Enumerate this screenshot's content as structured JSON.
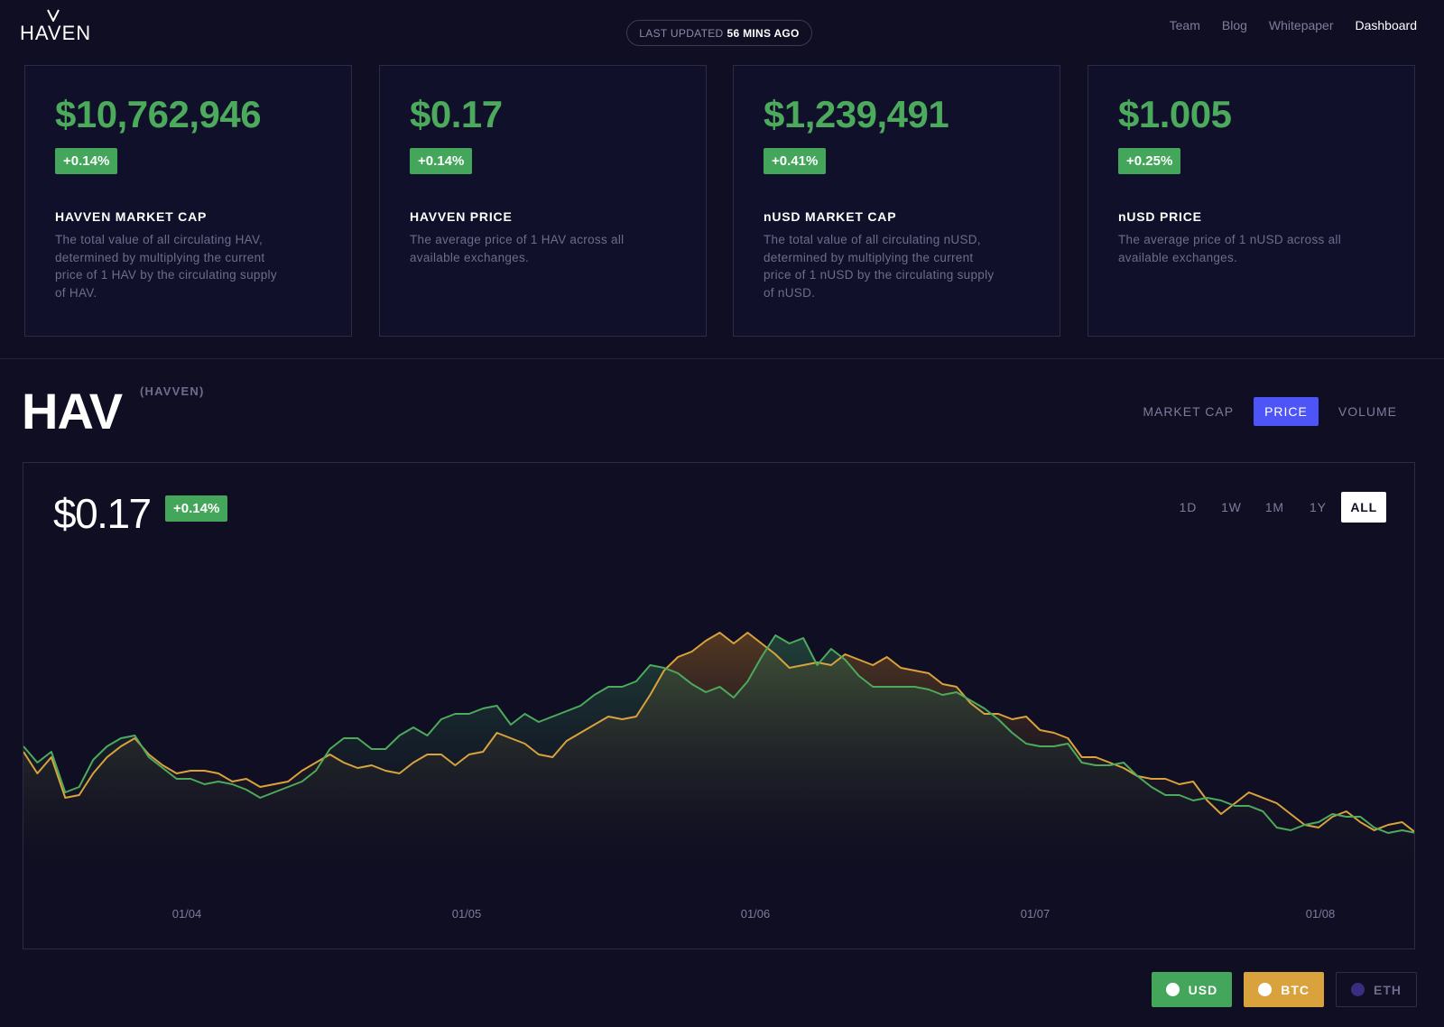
{
  "header": {
    "logo_text": "HAVEN",
    "last_updated_label": "LAST UPDATED",
    "last_updated_value": "56 MINS AGO",
    "nav": [
      {
        "label": "Team",
        "active": false
      },
      {
        "label": "Blog",
        "active": false
      },
      {
        "label": "Whitepaper",
        "active": false
      },
      {
        "label": "Dashboard",
        "active": true
      }
    ]
  },
  "cards": [
    {
      "value": "$10,762,946",
      "change": "+0.14%",
      "title": "HAVVEN MARKET CAP",
      "desc": "The total value of all circulating HAV, determined by multiplying the current price of 1 HAV by the circulating supply of HAV."
    },
    {
      "value": "$0.17",
      "change": "+0.14%",
      "title": "HAVVEN PRICE",
      "desc": "The average price of 1 HAV across all available exchanges."
    },
    {
      "value": "$1,239,491",
      "change": "+0.41%",
      "title": "nUSD MARKET CAP",
      "desc": "The total value of all circulating nUSD, determined by multiplying the current price of 1 nUSD by the circulating supply of nUSD."
    },
    {
      "value": "$1.005",
      "change": "+0.25%",
      "title": "nUSD PRICE",
      "desc": "The average price of 1 nUSD across all available exchanges."
    }
  ],
  "section": {
    "symbol": "HAV",
    "subtitle": "(HAVVEN)",
    "metric_tabs": [
      {
        "label": "MARKET CAP",
        "active": false
      },
      {
        "label": "PRICE",
        "active": true
      },
      {
        "label": "VOLUME",
        "active": false
      }
    ],
    "price": "$0.17",
    "change": "+0.14%",
    "range_tabs": [
      {
        "label": "1D",
        "active": false
      },
      {
        "label": "1W",
        "active": false
      },
      {
        "label": "1M",
        "active": false
      },
      {
        "label": "1Y",
        "active": false
      },
      {
        "label": "ALL",
        "active": true
      }
    ],
    "currencies": [
      {
        "label": "USD",
        "active": true
      },
      {
        "label": "BTC",
        "active": true
      },
      {
        "label": "ETH",
        "active": false
      }
    ]
  },
  "colors": {
    "background": "#0f0e22",
    "positive": "#44a65a",
    "usd_line": "#4caa5c",
    "btc_line": "#d9a23c",
    "eth_dot": "#3a2d80",
    "accent": "#4d55f6"
  },
  "chart_data": {
    "type": "area",
    "x_tick_labels": [
      "01/04",
      "01/05",
      "01/06",
      "01/07",
      "01/08"
    ],
    "xlim": [
      0,
      100
    ],
    "ylim": [
      0,
      100
    ],
    "y_axis_shown": false,
    "grid": false,
    "series": [
      {
        "name": "USD",
        "color": "#4caa5c",
        "x": [
          0,
          1,
          2,
          3,
          4,
          5,
          6,
          7,
          8,
          9,
          10,
          11,
          12,
          13,
          14,
          15,
          16,
          17,
          18,
          19,
          20,
          21,
          22,
          23,
          24,
          25,
          26,
          27,
          28,
          29,
          30,
          31,
          32,
          33,
          34,
          35,
          36,
          37,
          38,
          39,
          40,
          41,
          42,
          43,
          44,
          45,
          46,
          47,
          48,
          49,
          50,
          51,
          52,
          53,
          54,
          55,
          56,
          57,
          58,
          59,
          60,
          61,
          62,
          63,
          64,
          65,
          66,
          67,
          68,
          69,
          70,
          71,
          72,
          73,
          74,
          75,
          76,
          77,
          78,
          79,
          80,
          81,
          82,
          83,
          84,
          85,
          86,
          87,
          88,
          89,
          90,
          91,
          92,
          93,
          94,
          95,
          96,
          97,
          98,
          99,
          100
        ],
        "values": [
          52,
          46,
          50,
          35,
          37,
          47,
          52,
          55,
          56,
          48,
          44,
          40,
          40,
          38,
          39,
          38,
          36,
          33,
          35,
          37,
          39,
          43,
          51,
          55,
          55,
          51,
          51,
          56,
          59,
          56,
          62,
          64,
          64,
          66,
          67,
          60,
          64,
          61,
          63,
          65,
          67,
          71,
          74,
          74,
          76,
          82,
          81,
          79,
          75,
          72,
          74,
          70,
          76,
          85,
          93,
          90,
          92,
          82,
          88,
          84,
          78,
          74,
          74,
          74,
          74,
          73,
          71,
          72,
          69,
          66,
          62,
          57,
          53,
          52,
          52,
          53,
          46,
          45,
          45,
          46,
          41,
          37,
          34,
          34,
          32,
          33,
          32,
          30,
          30,
          28,
          22,
          21,
          23,
          24,
          27,
          26,
          26,
          22,
          20,
          21,
          20
        ]
      },
      {
        "name": "BTC",
        "color": "#d9a23c",
        "x": [
          0,
          1,
          2,
          3,
          4,
          5,
          6,
          7,
          8,
          9,
          10,
          11,
          12,
          13,
          14,
          15,
          16,
          17,
          18,
          19,
          20,
          21,
          22,
          23,
          24,
          25,
          26,
          27,
          28,
          29,
          30,
          31,
          32,
          33,
          34,
          35,
          36,
          37,
          38,
          39,
          40,
          41,
          42,
          43,
          44,
          45,
          46,
          47,
          48,
          49,
          50,
          51,
          52,
          53,
          54,
          55,
          56,
          57,
          58,
          59,
          60,
          61,
          62,
          63,
          64,
          65,
          66,
          67,
          68,
          69,
          70,
          71,
          72,
          73,
          74,
          75,
          76,
          77,
          78,
          79,
          80,
          81,
          82,
          83,
          84,
          85,
          86,
          87,
          88,
          89,
          90,
          91,
          92,
          93,
          94,
          95,
          96,
          97,
          98,
          99,
          100
        ],
        "values": [
          50,
          42,
          48,
          33,
          34,
          42,
          48,
          52,
          55,
          49,
          45,
          42,
          43,
          43,
          42,
          39,
          40,
          37,
          38,
          39,
          43,
          46,
          49,
          46,
          44,
          45,
          43,
          42,
          46,
          49,
          49,
          45,
          49,
          50,
          57,
          55,
          53,
          49,
          48,
          54,
          57,
          60,
          63,
          62,
          63,
          71,
          80,
          85,
          87,
          91,
          94,
          90,
          94,
          90,
          86,
          81,
          82,
          83,
          82,
          86,
          84,
          82,
          85,
          81,
          80,
          79,
          75,
          74,
          68,
          64,
          64,
          62,
          63,
          58,
          57,
          55,
          48,
          48,
          46,
          44,
          41,
          40,
          40,
          38,
          39,
          32,
          27,
          31,
          35,
          33,
          31,
          27,
          23,
          22,
          26,
          28,
          24,
          21,
          23,
          24,
          20
        ]
      }
    ]
  }
}
